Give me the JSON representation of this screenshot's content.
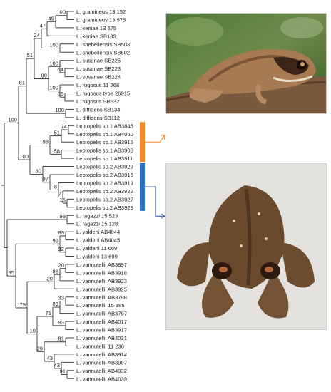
{
  "taxa": [
    "L. gramineus 13 152",
    "L. gramineus 13 575",
    "L. xeniae 13 575",
    "L. xeniae SB183",
    "L. shebellensis SB503",
    "L. shebellensis SB502",
    "L. susanae SB225",
    "L. susanae SB223",
    "L. susanae SB224",
    "L. rugosus 11 268",
    "L. rugosus type 26915",
    "L. rugosus SB532",
    "L. diffidens SB134",
    "L. diffidens SB112",
    "Leptopelis sp.1 AB3845",
    "Leptopelis sp.1 AB4060",
    "Leptopelis sp.1 AB3915",
    "Leptopelis sp.1 AB3908",
    "Leptopelis sp.1 AB3911",
    "Leptopelis sp.2 AB3929",
    "Leptopelis sp.2 AB3916",
    "Leptopelis sp.2 AB3919",
    "Leptopelis sp.2 AB3922",
    "Leptopelis sp.2 AB3927",
    "Leptopelis sp.2 AB3928",
    "L. ragazzi 15 523",
    "L. ragazzi 15 128",
    "L. yaldeni AB4044",
    "L. yaldeni AB4045",
    "L. yaldeni 11 669",
    "L. yaldeni 13 699",
    "L. vannutellii AB3897",
    "L. vannutellii AB3918",
    "L. vannutellii AB3923",
    "L. vannutellii AB3925",
    "L. vannutellii AB3798",
    "L. vannutellii 15 186",
    "L. vannutellii AB3797",
    "L. vannutellii AB4017",
    "L. vannutellii AB3917",
    "L. vannutellii AB4031",
    "L. vannutellii 11 236",
    "L. vannutellii AB3914",
    "L. vannutellii AB3997",
    "L. vannutellii AB4032",
    "L. vannutellii AB4039"
  ],
  "support": {
    "n01": "100",
    "n02": "49",
    "n03": "47",
    "n04": "100",
    "n05": "99",
    "n06": "24",
    "n07": "51",
    "n08": "100",
    "n09": "64",
    "n10": "100",
    "n11": "65",
    "n12": "81",
    "n13": "100",
    "n14": "100",
    "n15": "74",
    "n16": "51",
    "n17": "98",
    "n18": "58",
    "n19": "100",
    "n20": "80",
    "n21": "97",
    "n22": "8",
    "n23": "7",
    "n24": "15",
    "n25": "99",
    "n26": "89",
    "n27": "99",
    "n28": "92",
    "n29": "95",
    "n30": "20",
    "n31": "86",
    "n32": "20",
    "n33": "33",
    "n34": "89",
    "n35": "71",
    "n36": "79",
    "n37": "93",
    "n38": "81",
    "n39": "10",
    "n40": "29",
    "n41": "43",
    "n42": "43",
    "n43": "91"
  },
  "clade_colors": {
    "sp1": "#f0892b",
    "sp2": "#2f6fc4",
    "branch": "#444444",
    "arrow": "#1f4e9c"
  },
  "photos": {
    "top": {
      "subject": "Leptopelis sp.1 frog on a branch"
    },
    "bottom": {
      "subject": "Leptopelis sp.2 frog, dorsal view"
    }
  }
}
